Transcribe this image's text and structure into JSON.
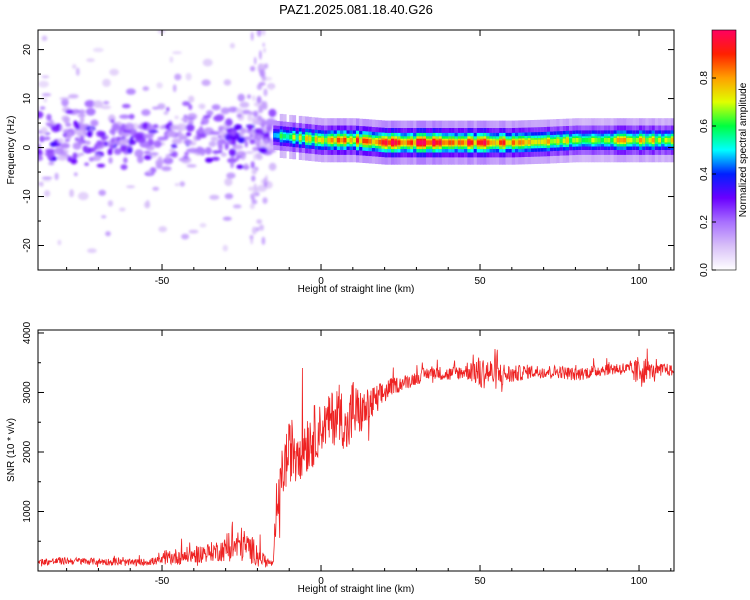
{
  "title": "PAZ1.2025.081.18.40.G26",
  "chart_data": [
    {
      "type": "heatmap",
      "xlabel": "Height of straight line (km)",
      "ylabel": "Frequency (Hz)",
      "xlim": [
        -89,
        111
      ],
      "ylim": [
        -25,
        24
      ],
      "xticks": [
        "-50",
        "0",
        "50",
        "100"
      ],
      "yticks": [
        "20",
        "10",
        "0",
        "-10",
        "-20"
      ],
      "colorbar": {
        "label": "Normalized spectral amplitude",
        "range": [
          0,
          1
        ],
        "ticks": [
          "0.0",
          "0.2",
          "0.4",
          "0.6",
          "0.8"
        ],
        "colors": [
          "#ffffff",
          "#d8c0f8",
          "#a870ff",
          "#6a00ff",
          "#0020ff",
          "#00ffff",
          "#00ff40",
          "#e0ff00",
          "#ffa000",
          "#ff2000",
          "#ff0060"
        ]
      },
      "ridge": {
        "x": [
          -15,
          0,
          10,
          20,
          30,
          40,
          50,
          60,
          70,
          80,
          90,
          100,
          111
        ],
        "frequency_hz": [
          2.5,
          1.5,
          1.5,
          1.0,
          1.0,
          1.0,
          1.0,
          1.0,
          1.2,
          1.5,
          1.5,
          1.5,
          1.5
        ],
        "amplitude": [
          0.55,
          0.8,
          0.85,
          0.95,
          0.95,
          0.95,
          0.9,
          0.9,
          0.75,
          0.7,
          0.75,
          0.8,
          0.7
        ]
      },
      "noisy_region": {
        "x_range": [
          -89,
          -15
        ],
        "frequency_range_hz": [
          -22,
          24
        ],
        "peak_amplitude": 0.35
      }
    },
    {
      "type": "line",
      "xlabel": "Height of straight line (km)",
      "ylabel": "SNR (10 * v/v)",
      "xlim": [
        -89,
        111
      ],
      "ylim": [
        0,
        4050
      ],
      "xticks": [
        "-50",
        "0",
        "50",
        "100"
      ],
      "yticks": [
        "1000",
        "2000",
        "3000",
        "4000"
      ],
      "color": "#ee2222",
      "x": [
        -89,
        -80,
        -70,
        -60,
        -55,
        -50,
        -45,
        -40,
        -35,
        -30,
        -25,
        -20,
        -17,
        -15,
        -14,
        -12,
        -10,
        -8,
        -6,
        -4,
        -2,
        0,
        2,
        4,
        6,
        8,
        10,
        12,
        14,
        16,
        18,
        20,
        22,
        25,
        28,
        30,
        35,
        40,
        45,
        48,
        50,
        52,
        55,
        60,
        65,
        70,
        75,
        80,
        85,
        90,
        95,
        98,
        100,
        101,
        102,
        105,
        108,
        111
      ],
      "y": [
        150,
        170,
        160,
        140,
        150,
        180,
        250,
        270,
        320,
        360,
        450,
        300,
        150,
        120,
        900,
        1700,
        2000,
        2100,
        2150,
        2200,
        2300,
        2400,
        2500,
        2600,
        2700,
        2300,
        2700,
        2650,
        2700,
        2800,
        2900,
        3000,
        3100,
        3150,
        3200,
        3250,
        3350,
        3300,
        3350,
        3400,
        3300,
        3350,
        3300,
        3300,
        3350,
        3350,
        3350,
        3300,
        3350,
        3400,
        3400,
        3350,
        3350,
        3450,
        3400,
        3350,
        3400,
        3350
      ],
      "noise_amplitude": [
        60,
        60,
        60,
        60,
        60,
        70,
        150,
        140,
        160,
        200,
        300,
        200,
        80,
        50,
        300,
        500,
        500,
        600,
        600,
        550,
        500,
        400,
        400,
        500,
        500,
        400,
        600,
        400,
        350,
        300,
        250,
        200,
        150,
        120,
        120,
        120,
        110,
        120,
        120,
        250,
        300,
        250,
        250,
        150,
        120,
        110,
        110,
        110,
        110,
        110,
        110,
        150,
        300,
        400,
        200,
        100,
        100,
        100
      ]
    }
  ]
}
